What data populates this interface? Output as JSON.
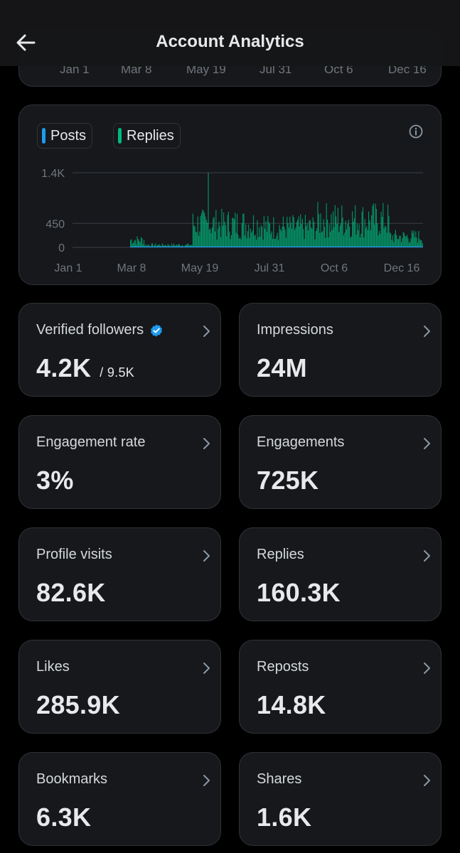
{
  "header": {
    "title": "Account Analytics"
  },
  "range_axis": {
    "ticks": [
      "Jan 1",
      "Mar 8",
      "May 19",
      "Jul 31",
      "Oct 6",
      "Dec 16"
    ]
  },
  "legend": [
    {
      "label": "Posts",
      "color": "#1d9bf0"
    },
    {
      "label": "Replies",
      "color": "#00ba7c"
    }
  ],
  "chart_data": {
    "type": "bar",
    "series": [
      {
        "name": "Posts",
        "color": "#1d9bf0"
      },
      {
        "name": "Replies",
        "color": "#00ba7c"
      }
    ],
    "y_ticks": [
      "1.4K",
      "450",
      "0"
    ],
    "y_tick_values": [
      1400,
      450,
      0
    ],
    "ylim": [
      0,
      1400
    ],
    "x_ticks": [
      "Jan 1",
      "Mar 8",
      "May 19",
      "Jul 31",
      "Oct 6",
      "Dec 16"
    ],
    "grid": true,
    "segments": [
      {
        "from_day": 0,
        "to_day": 60,
        "level": 0
      },
      {
        "from_day": 60,
        "to_day": 75,
        "level": 180
      },
      {
        "from_day": 75,
        "to_day": 125,
        "level": 60
      },
      {
        "from_day": 125,
        "to_day": 200,
        "level": 560
      },
      {
        "from_day": 200,
        "to_day": 255,
        "level": 480
      },
      {
        "from_day": 255,
        "to_day": 330,
        "level": 660
      },
      {
        "from_day": 330,
        "to_day": 365,
        "level": 260
      }
    ],
    "peak": {
      "day": 141,
      "value": 1400
    }
  },
  "metrics": [
    {
      "label": "Verified followers",
      "value": "4.2K",
      "sub": "/ 9.5K",
      "verified": true
    },
    {
      "label": "Impressions",
      "value": "24M"
    },
    {
      "label": "Engagement rate",
      "value": "3%"
    },
    {
      "label": "Engagements",
      "value": "725K"
    },
    {
      "label": "Profile visits",
      "value": "82.6K"
    },
    {
      "label": "Replies",
      "value": "160.3K"
    },
    {
      "label": "Likes",
      "value": "285.9K"
    },
    {
      "label": "Reposts",
      "value": "14.8K"
    },
    {
      "label": "Bookmarks",
      "value": "6.3K"
    },
    {
      "label": "Shares",
      "value": "1.6K"
    }
  ]
}
